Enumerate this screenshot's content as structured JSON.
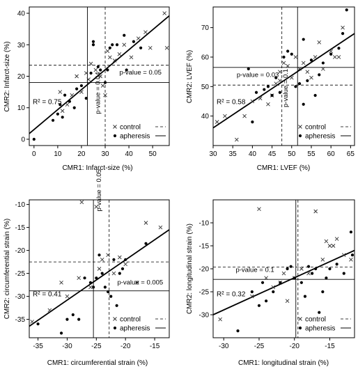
{
  "legend": {
    "control_label": "control",
    "apheresis_label": "apheresis"
  },
  "chart_data": [
    {
      "type": "scatter",
      "title": "",
      "xlabel": "CMR1: Infarct-size (%)",
      "ylabel": "CMR2: Infarct-size (%)",
      "xlim": [
        -2,
        57
      ],
      "ylim": [
        -2,
        42
      ],
      "xticks": [
        0,
        10,
        20,
        30,
        40,
        50
      ],
      "yticks": [
        0,
        10,
        20,
        30,
        40
      ],
      "legend_position": "bottom-right",
      "series": [
        {
          "name": "control",
          "marker": "x",
          "points": [
            [
              11,
              15
            ],
            [
              12,
              9
            ],
            [
              14,
              11
            ],
            [
              16,
              14
            ],
            [
              18,
              20
            ],
            [
              20,
              15
            ],
            [
              22,
              21
            ],
            [
              23,
              19
            ],
            [
              24,
              24
            ],
            [
              26,
              22
            ],
            [
              28,
              20
            ],
            [
              29,
              17
            ],
            [
              30,
              14
            ],
            [
              31,
              28
            ],
            [
              32,
              26
            ],
            [
              34,
              25
            ],
            [
              36,
              27
            ],
            [
              38,
              30
            ],
            [
              41,
              26
            ],
            [
              44,
              32
            ],
            [
              47,
              34
            ],
            [
              49,
              29
            ],
            [
              55,
              40
            ],
            [
              56,
              29
            ]
          ]
        },
        {
          "name": "apheresis",
          "marker": "dot",
          "points": [
            [
              0,
              0
            ],
            [
              8,
              6
            ],
            [
              10,
              8
            ],
            [
              11,
              11
            ],
            [
              12,
              7
            ],
            [
              13,
              14
            ],
            [
              15,
              12
            ],
            [
              17,
              10
            ],
            [
              18,
              16
            ],
            [
              20,
              17
            ],
            [
              22,
              13
            ],
            [
              24,
              21
            ],
            [
              25,
              30
            ],
            [
              25,
              31
            ],
            [
              27,
              23
            ],
            [
              28,
              22
            ],
            [
              30,
              18
            ],
            [
              31,
              22
            ],
            [
              32,
              29
            ],
            [
              33,
              30
            ],
            [
              35,
              30
            ],
            [
              38,
              33
            ],
            [
              39,
              22
            ],
            [
              42,
              31
            ],
            [
              45,
              29
            ]
          ]
        }
      ],
      "regression": {
        "x1": -2,
        "y1": 1.8,
        "x2": 57,
        "y2": 39.2
      },
      "control_means": {
        "x": 30,
        "y": 23.5
      },
      "apheresis_means": {
        "x": 22.5,
        "y": 18
      },
      "r2_label": "R² = 0.75",
      "annotations": [
        {
          "text": "p-value = 0.05",
          "x": 36,
          "y": 20.5,
          "rotate": false
        },
        {
          "text": "p-value = 0.04",
          "x": 27.8,
          "y": 8,
          "rotate": true
        }
      ]
    },
    {
      "type": "scatter",
      "title": "",
      "xlabel": "CMR1:  LVEF (%)",
      "ylabel": "CMR2:  LVEF (%)",
      "xlim": [
        30,
        66
      ],
      "ylim": [
        30,
        77
      ],
      "xticks": [
        30,
        35,
        40,
        45,
        50,
        55,
        60,
        65
      ],
      "yticks": [
        40,
        50,
        60,
        70
      ],
      "legend_position": "bottom-right",
      "series": [
        {
          "name": "control",
          "marker": "x",
          "points": [
            [
              31,
              38
            ],
            [
              33,
              40
            ],
            [
              36,
              32
            ],
            [
              38,
              40
            ],
            [
              40,
              45
            ],
            [
              42,
              46
            ],
            [
              44,
              44
            ],
            [
              45,
              47
            ],
            [
              46,
              51
            ],
            [
              47,
              52
            ],
            [
              47,
              55
            ],
            [
              48,
              58
            ],
            [
              49,
              57
            ],
            [
              50,
              53
            ],
            [
              51,
              60
            ],
            [
              52,
              56
            ],
            [
              53,
              58
            ],
            [
              54,
              55
            ],
            [
              55,
              53
            ],
            [
              56,
              60
            ],
            [
              57,
              65
            ],
            [
              58,
              56
            ],
            [
              60,
              62
            ],
            [
              61,
              60
            ],
            [
              62,
              60
            ],
            [
              63,
              70
            ]
          ]
        },
        {
          "name": "apheresis",
          "marker": "dot",
          "points": [
            [
              39,
              56
            ],
            [
              40,
              38
            ],
            [
              41,
              48
            ],
            [
              43,
              49
            ],
            [
              44,
              50
            ],
            [
              45,
              47
            ],
            [
              46,
              53
            ],
            [
              47,
              48
            ],
            [
              48,
              60
            ],
            [
              49,
              62
            ],
            [
              50,
              61
            ],
            [
              51,
              50
            ],
            [
              52,
              51
            ],
            [
              53,
              44
            ],
            [
              53,
              66
            ],
            [
              54,
              52
            ],
            [
              55,
              59
            ],
            [
              56,
              47
            ],
            [
              57,
              54
            ],
            [
              58,
              58
            ],
            [
              60,
              61
            ],
            [
              62,
              63
            ],
            [
              63,
              68
            ],
            [
              64,
              76
            ]
          ]
        }
      ],
      "regression": {
        "x1": 30,
        "y1": 36,
        "x2": 66,
        "y2": 68
      },
      "control_means": {
        "x": 47.5,
        "y": 50.5
      },
      "apheresis_means": {
        "x": 51.5,
        "y": 56.5
      },
      "r2_label": "R² = 0.58",
      "annotations": [
        {
          "text": "p-value = 0.03",
          "x": 36,
          "y": 53.3,
          "rotate": false
        },
        {
          "text": "p-value = 0.1",
          "x": 49,
          "y": 43,
          "rotate": true
        }
      ]
    },
    {
      "type": "scatter",
      "title": "",
      "xlabel": "CMR1:  circumferential strain (%)",
      "ylabel": "CMR2:  circumferential strain (%)",
      "xlim": [
        -36.5,
        -12.5
      ],
      "ylim": [
        -39,
        -9
      ],
      "xticks": [
        -35,
        -30,
        -25,
        -20,
        -15
      ],
      "yticks": [
        -35,
        -30,
        -25,
        -20,
        -15,
        -10
      ],
      "legend_position": "bottom-right",
      "series": [
        {
          "name": "control",
          "marker": "x",
          "points": [
            [
              -36,
              -35.5
            ],
            [
              -33,
              -33
            ],
            [
              -31,
              -27
            ],
            [
              -30,
              -30
            ],
            [
              -28,
              -26
            ],
            [
              -27.5,
              -9.5
            ],
            [
              -26,
              -28
            ],
            [
              -25,
              -10.5
            ],
            [
              -24.5,
              -24
            ],
            [
              -24,
              -22
            ],
            [
              -23,
              -21
            ],
            [
              -22,
              -25
            ],
            [
              -21,
              -21.5
            ],
            [
              -20,
              -23
            ],
            [
              -18,
              -27
            ],
            [
              -16.5,
              -14
            ],
            [
              -14,
              -15
            ]
          ]
        },
        {
          "name": "apheresis",
          "marker": "dot",
          "points": [
            [
              -35,
              -36
            ],
            [
              -31,
              -38
            ],
            [
              -30,
              -35
            ],
            [
              -29,
              -34
            ],
            [
              -28,
              -35
            ],
            [
              -27,
              -26
            ],
            [
              -26,
              -27
            ],
            [
              -25.5,
              -28
            ],
            [
              -25,
              -26
            ],
            [
              -24.5,
              -21
            ],
            [
              -24,
              -25
            ],
            [
              -23.5,
              -28
            ],
            [
              -23,
              -29
            ],
            [
              -22.5,
              -30
            ],
            [
              -22,
              -22
            ],
            [
              -21.5,
              -32
            ],
            [
              -21,
              -25
            ],
            [
              -20.5,
              -24
            ],
            [
              -20,
              -22
            ],
            [
              -16.5,
              -18.5
            ]
          ]
        }
      ],
      "regression": {
        "x1": -36.5,
        "y1": -36.5,
        "x2": -12.5,
        "y2": -15.5
      },
      "control_means": {
        "x": -22.8,
        "y": -22.5
      },
      "apheresis_means": {
        "x": -25.5,
        "y": -28.8
      },
      "r2_label": "R² = 0.41",
      "annotations": [
        {
          "text": "p-value = 0.05",
          "x": -24.2,
          "y": -11.5,
          "rotate": true
        },
        {
          "text": "p-value = 0.005",
          "x": -21.4,
          "y": -27.4,
          "rotate": false
        }
      ]
    },
    {
      "type": "scatter",
      "title": "",
      "xlabel": "CMR1:  longitudinal strain (%)",
      "ylabel": "CMR2:  longitudinal strain (%)",
      "xlim": [
        -31.5,
        -11.5
      ],
      "ylim": [
        -35,
        -5
      ],
      "xticks": [
        -30,
        -25,
        -20,
        -15
      ],
      "yticks": [
        -30,
        -25,
        -20,
        -15,
        -10
      ],
      "legend_position": "bottom-right",
      "series": [
        {
          "name": "control",
          "marker": "x",
          "points": [
            [
              -30.5,
              -31
            ],
            [
              -26,
              -26
            ],
            [
              -25,
              -7
            ],
            [
              -24,
              -22
            ],
            [
              -23,
              -24
            ],
            [
              -22,
              -23
            ],
            [
              -21.5,
              -21
            ],
            [
              -21,
              -27
            ],
            [
              -20,
              -22
            ],
            [
              -19,
              -20
            ],
            [
              -18,
              -21
            ],
            [
              -17,
              -7.5
            ],
            [
              -16,
              -18
            ],
            [
              -15.5,
              -14
            ],
            [
              -15,
              -15
            ],
            [
              -14.5,
              -15
            ],
            [
              -14,
              -13.5
            ],
            [
              -13,
              -17
            ],
            [
              -12,
              -18
            ]
          ]
        },
        {
          "name": "apheresis",
          "marker": "dot",
          "points": [
            [
              -28,
              -33.5
            ],
            [
              -26,
              -25
            ],
            [
              -25,
              -28
            ],
            [
              -24.5,
              -23
            ],
            [
              -24,
              -27
            ],
            [
              -23,
              -25
            ],
            [
              -22,
              -23
            ],
            [
              -21,
              -20
            ],
            [
              -20.5,
              -19.5
            ],
            [
              -20,
              -22
            ],
            [
              -19,
              -23
            ],
            [
              -18.5,
              -26
            ],
            [
              -18,
              -19.5
            ],
            [
              -17.5,
              -21
            ],
            [
              -17,
              -20
            ],
            [
              -16.5,
              -29.5
            ],
            [
              -16,
              -25
            ],
            [
              -15.5,
              -22
            ],
            [
              -15,
              -20
            ],
            [
              -14,
              -19
            ],
            [
              -13,
              -21
            ],
            [
              -12,
              -12
            ],
            [
              -11.8,
              -17
            ]
          ]
        }
      ],
      "regression": {
        "x1": -31.5,
        "y1": -30,
        "x2": -11.5,
        "y2": -16
      },
      "control_means": {
        "x": -19.5,
        "y": -19.6
      },
      "apheresis_means": {
        "x": -19.8,
        "y": -22.3
      },
      "r2_label": "R² = 0.32",
      "annotations": [
        {
          "text": "p-value = 0.1",
          "x": -28.3,
          "y": -20.7,
          "rotate": false
        }
      ]
    }
  ]
}
